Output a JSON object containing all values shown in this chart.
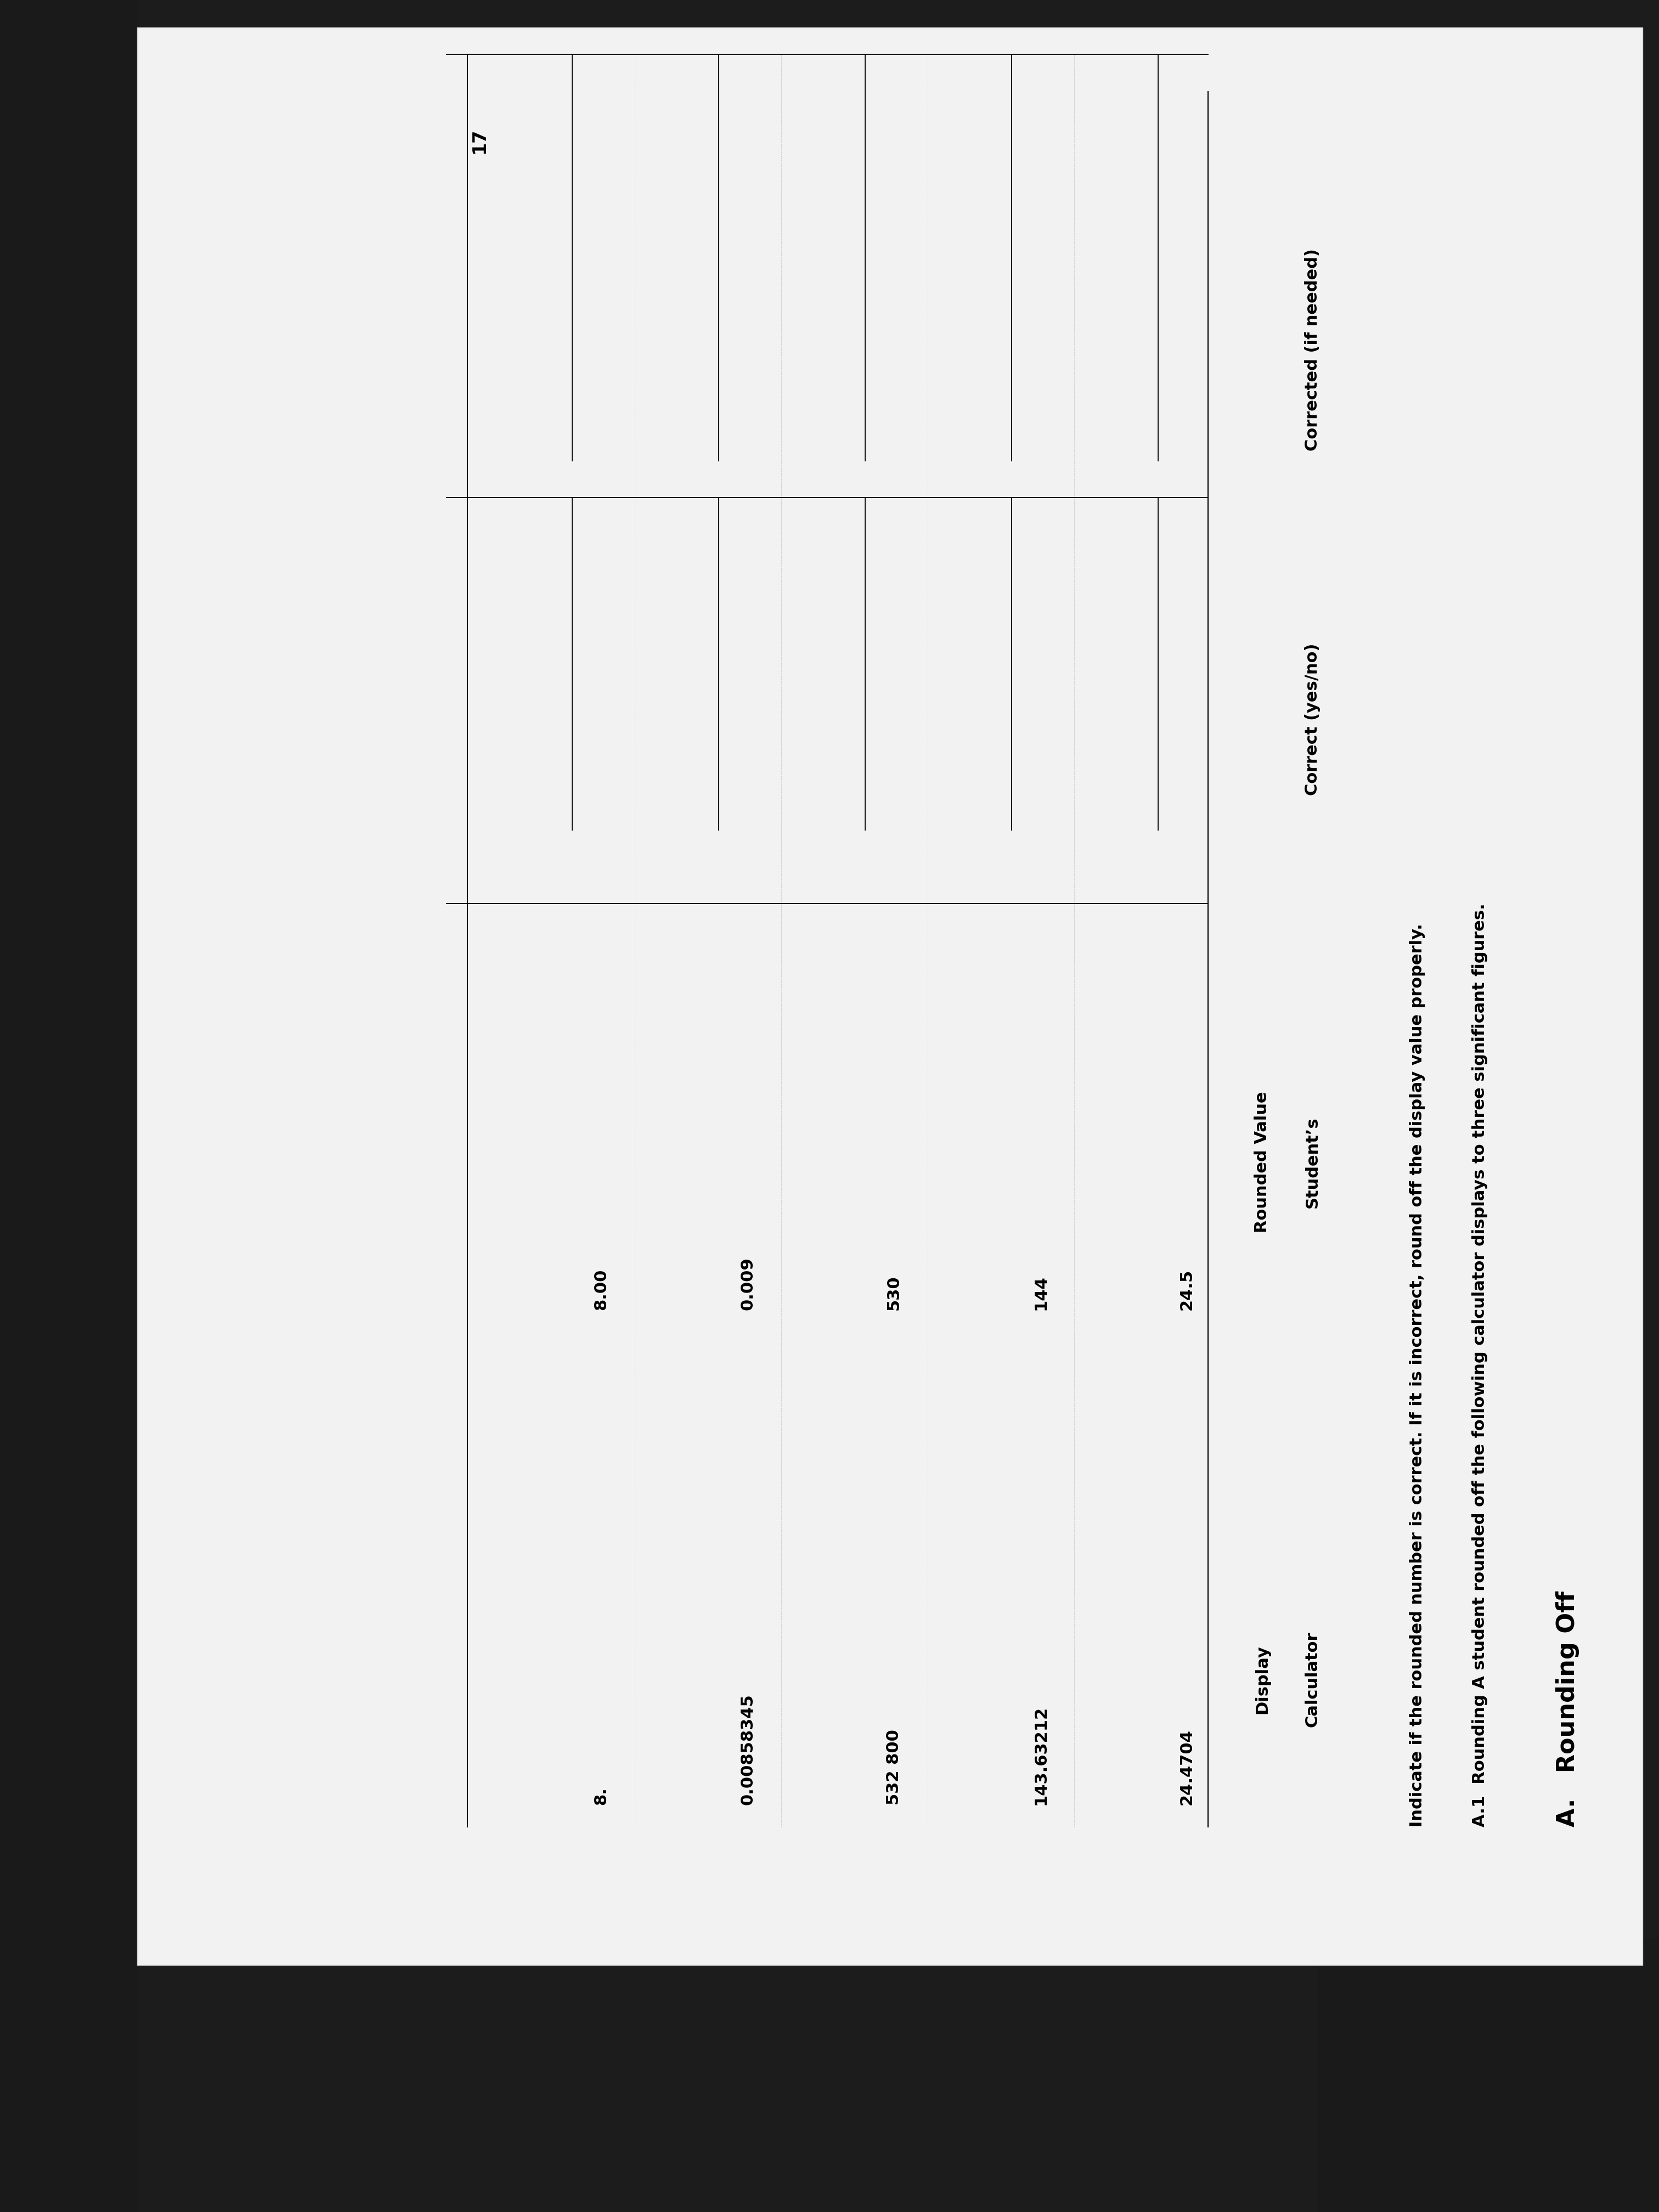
{
  "title_main": "A.   Rounding Off",
  "subtitle_part1": "A.1  Rounding",
  "subtitle_part2": " A student rounded off the following calculator displays to three significant figures.",
  "instruction": "Indicate if the rounded number is correct. If it is incorrect, round off the display value properly.",
  "col_headers_line1": [
    "Calculator",
    "Student’s",
    "Correct (yes/no)",
    "Corrected (if needed)"
  ],
  "col_headers_line2": [
    "Display",
    "Rounded Value",
    "",
    ""
  ],
  "rows": [
    [
      "24.4704",
      "24.5"
    ],
    [
      "143.63212",
      "144"
    ],
    [
      "532 800",
      "530"
    ],
    [
      "0.00858345",
      "0.009"
    ],
    [
      "8.",
      "8.00"
    ]
  ],
  "page_number": "17",
  "bg_page": "#f0f0f0",
  "bg_dark_left": "#1a1a1a",
  "bg_dark_corner": "#2a1a0a",
  "text_color": "#000000",
  "page_white": "#f5f5f5",
  "font_size_title": 32,
  "font_size_subtitle": 22,
  "font_size_body": 22,
  "font_size_page": 24,
  "rotation_deg": 90
}
